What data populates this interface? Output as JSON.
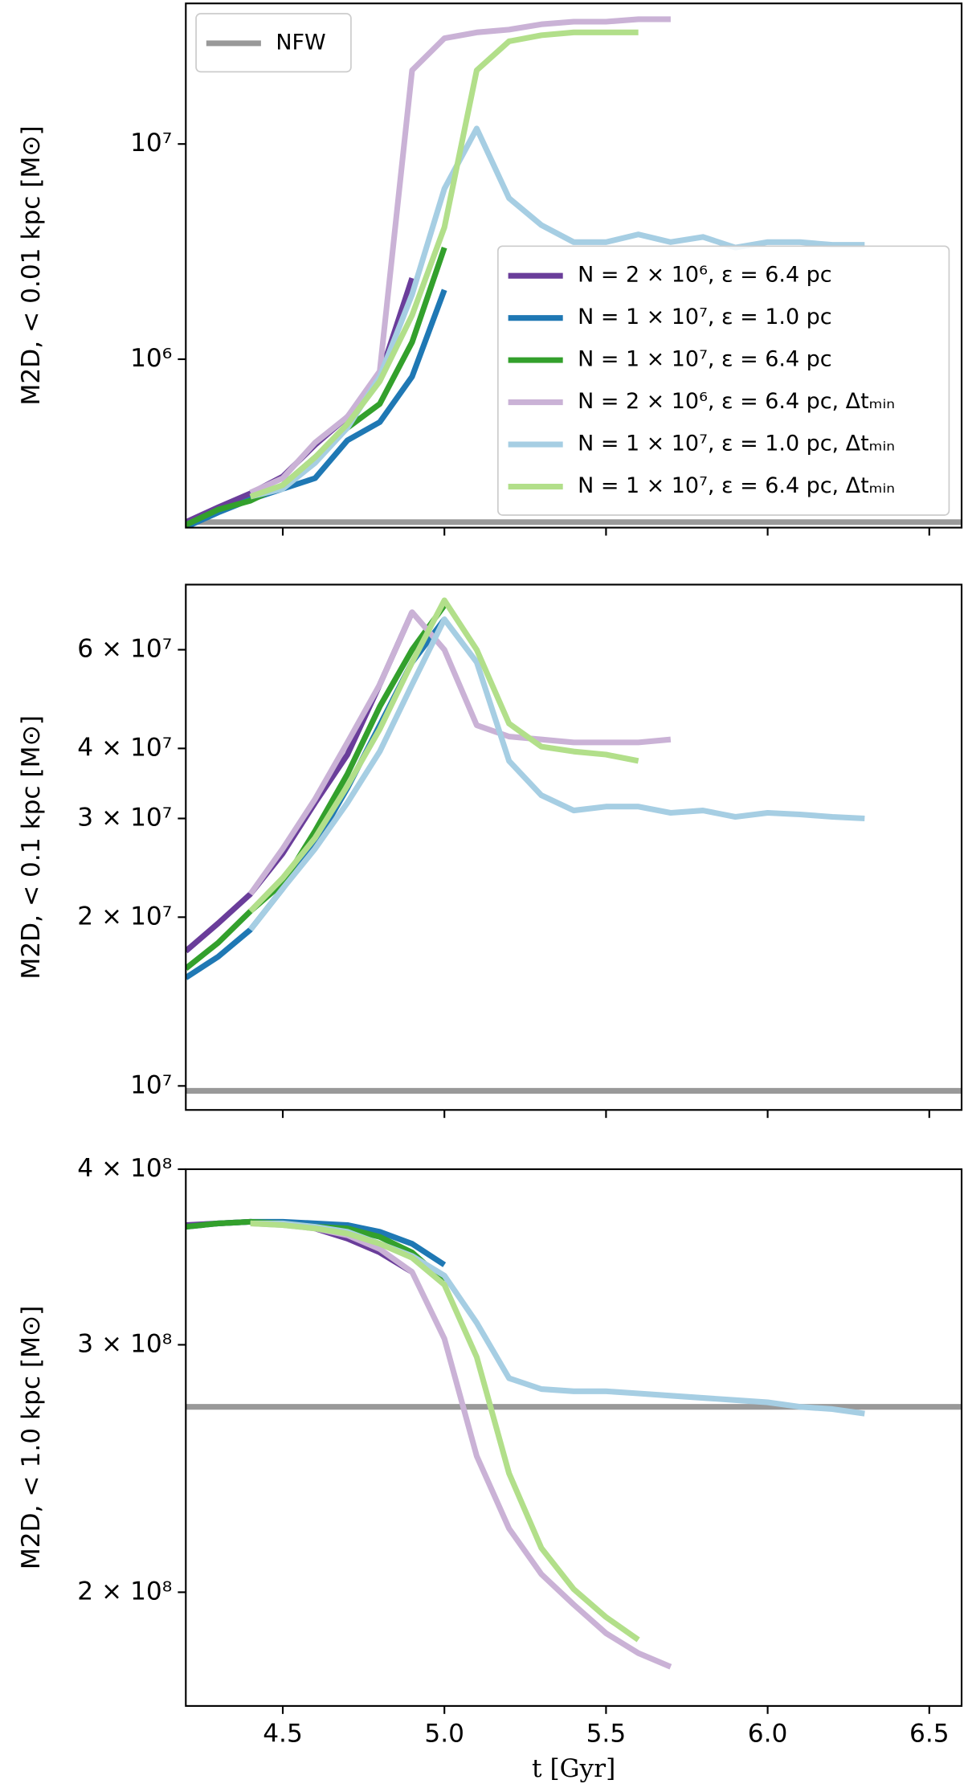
{
  "chart_data": [
    {
      "type": "line",
      "log_y": true,
      "xlim": [
        4.2,
        6.6
      ],
      "xticks": [
        4.5,
        5,
        5.5,
        6,
        6.5
      ],
      "ylim": [
        165000,
        45000000
      ],
      "yticks": [
        {
          "value": 1000000,
          "label": "10⁶"
        },
        {
          "value": 10000000,
          "label": "10⁷"
        }
      ],
      "ylabel": "M2D, < 0.01 kpc [M⊙]",
      "legend": "lower right",
      "reference": {
        "name": "NFW",
        "color": "#999999",
        "value": 175000,
        "legend": "upper left"
      },
      "x": [
        4.2,
        4.3,
        4.4,
        4.5,
        4.6,
        4.7,
        4.8,
        4.9,
        5.0,
        5.1,
        5.2,
        5.3,
        5.4,
        5.5,
        5.6,
        5.7,
        5.8,
        5.9,
        6.0,
        6.1,
        6.2,
        6.3
      ],
      "series": [
        {
          "name": "N = 2 × 10⁶, ε = 6.4 pc",
          "color": "#6a3d9a",
          "values": [
            175000,
            205000,
            238000,
            285000,
            400000,
            540000,
            830000,
            2380000,
            null,
            null,
            null,
            null,
            null,
            null,
            null,
            null,
            null,
            null,
            null,
            null,
            null,
            null
          ]
        },
        {
          "name": "N = 1 × 10⁷, ε = 1.0 pc",
          "color": "#1f78b4",
          "values": [
            166000,
            194000,
            223000,
            250000,
            280000,
            420000,
            510000,
            830000,
            2100000,
            null,
            null,
            null,
            null,
            null,
            null,
            null,
            null,
            null,
            null,
            null,
            null,
            null
          ]
        },
        {
          "name": "N = 1 × 10⁷, ε = 6.4 pc",
          "color": "#33a02c",
          "values": [
            170000,
            200000,
            220000,
            260000,
            350000,
            480000,
            620000,
            1200000,
            3300000,
            null,
            null,
            null,
            null,
            null,
            null,
            null,
            null,
            null,
            null,
            null,
            null,
            null
          ]
        },
        {
          "name": "N = 2 × 10⁶, ε = 6.4 pc, Δtₘᵢₙ",
          "color": "#cab2d6",
          "values": [
            null,
            null,
            240000,
            280000,
            410000,
            540000,
            880000,
            22000000,
            31000000,
            33000000,
            34000000,
            36000000,
            37000000,
            37000000,
            38000000,
            38000000,
            null,
            null,
            null,
            null,
            null,
            null
          ]
        },
        {
          "name": "N = 1 × 10⁷, ε = 1.0 pc, Δtₘᵢₙ",
          "color": "#a6cee3",
          "values": [
            null,
            null,
            230000,
            250000,
            330000,
            480000,
            830000,
            2000000,
            6200000,
            11800000,
            5600000,
            4200000,
            3500000,
            3500000,
            3800000,
            3500000,
            3700000,
            3300000,
            3500000,
            3500000,
            3400000,
            3400000
          ]
        },
        {
          "name": "N = 1 × 10⁷, ε = 6.4 pc, Δtₘᵢₙ",
          "color": "#b2df8a",
          "values": [
            null,
            null,
            230000,
            260000,
            350000,
            500000,
            790000,
            1600000,
            4100000,
            22000000,
            30000000,
            32000000,
            33000000,
            33000000,
            33000000,
            null,
            null,
            null,
            null,
            null,
            null,
            null
          ]
        }
      ]
    },
    {
      "type": "line",
      "log_y": true,
      "xlim": [
        4.2,
        6.6
      ],
      "xticks": [
        4.5,
        5,
        5.5,
        6,
        6.5
      ],
      "ylim": [
        9060000,
        78400000
      ],
      "yticks": [
        {
          "value": 10000000,
          "label": "10⁷"
        },
        {
          "value": 20000000,
          "label": "2 × 10⁷"
        },
        {
          "value": 30000000,
          "label": "3 × 10⁷"
        },
        {
          "value": 40000000,
          "label": "4 × 10⁷"
        },
        {
          "value": 60000000,
          "label": "6 × 10⁷"
        }
      ],
      "ylabel": "M2D, < 0.1 kpc [M⊙]",
      "reference": {
        "color": "#999999",
        "value": 9800000
      },
      "x": [
        4.2,
        4.3,
        4.4,
        4.5,
        4.6,
        4.7,
        4.8,
        4.9,
        5.0,
        5.1,
        5.2,
        5.3,
        5.4,
        5.5,
        5.6,
        5.7,
        5.8,
        5.9,
        6.0,
        6.1,
        6.2,
        6.3
      ],
      "series": [
        {
          "color": "#6a3d9a",
          "values": [
            17400000,
            19500000,
            22000000,
            26000000,
            32000000,
            39000000,
            52000000,
            70000000,
            null,
            null,
            null,
            null,
            null,
            null,
            null,
            null,
            null,
            null,
            null,
            null,
            null,
            null
          ]
        },
        {
          "color": "#1f78b4",
          "values": [
            15600000,
            17000000,
            19000000,
            22500000,
            27000000,
            34000000,
            44000000,
            57000000,
            68000000,
            null,
            null,
            null,
            null,
            null,
            null,
            null,
            null,
            null,
            null,
            null,
            null,
            null
          ]
        },
        {
          "color": "#33a02c",
          "values": [
            16200000,
            18000000,
            20500000,
            23000000,
            28500000,
            36000000,
            47500000,
            60000000,
            72000000,
            null,
            null,
            null,
            null,
            null,
            null,
            null,
            null,
            null,
            null,
            null,
            null,
            null
          ]
        },
        {
          "color": "#cab2d6",
          "values": [
            null,
            null,
            22000000,
            26500000,
            32500000,
            41000000,
            52000000,
            70000000,
            60000000,
            44000000,
            42000000,
            41500000,
            41000000,
            41000000,
            41000000,
            41500000,
            null,
            null,
            null,
            null,
            null,
            null
          ]
        },
        {
          "color": "#a6cee3",
          "values": [
            null,
            null,
            19000000,
            22500000,
            26500000,
            32000000,
            39500000,
            52000000,
            68000000,
            57000000,
            38000000,
            33000000,
            31000000,
            31500000,
            31500000,
            30700000,
            31000000,
            30200000,
            30700000,
            30500000,
            30200000,
            30000000
          ]
        },
        {
          "color": "#b2df8a",
          "values": [
            null,
            null,
            20500000,
            23500000,
            27700000,
            34300000,
            43300000,
            57000000,
            73500000,
            60000000,
            44300000,
            40300000,
            39500000,
            39000000,
            38000000,
            null,
            null,
            null,
            null,
            null,
            null,
            null
          ]
        }
      ]
    },
    {
      "type": "line",
      "log_y": true,
      "xlim": [
        4.2,
        6.6
      ],
      "xticks": [
        4.5,
        {
          "value": 5,
          "label": "5.0"
        },
        5.5,
        {
          "value": 6,
          "label": "6.0"
        },
        6.5
      ],
      "ylim": [
        166000000,
        400000000
      ],
      "yticks": [
        {
          "value": 200000000,
          "label": "2 × 10⁸"
        },
        {
          "value": 300000000,
          "label": "3 × 10⁸"
        },
        {
          "value": 400000000,
          "label": "4 × 10⁸"
        }
      ],
      "ylabel": "M2D, < 1.0 kpc [M⊙]",
      "xlabel": "t [Gyr]",
      "reference": {
        "color": "#999999",
        "value": 271000000
      },
      "x": [
        4.2,
        4.3,
        4.4,
        4.5,
        4.6,
        4.7,
        4.8,
        4.9,
        5.0,
        5.1,
        5.2,
        5.3,
        5.4,
        5.5,
        5.6,
        5.7,
        5.8,
        5.9,
        6.0,
        6.1,
        6.2,
        6.3
      ],
      "series": [
        {
          "color": "#6a3d9a",
          "values": [
            365000000,
            366000000,
            367000000,
            366000000,
            363000000,
            357000000,
            349000000,
            338000000,
            null,
            null,
            null,
            null,
            null,
            null,
            null,
            null,
            null,
            null,
            null,
            null,
            null,
            null
          ]
        },
        {
          "color": "#1f78b4",
          "values": [
            364000000,
            366000000,
            367000000,
            367000000,
            366000000,
            365000000,
            361000000,
            354000000,
            342000000,
            null,
            null,
            null,
            null,
            null,
            null,
            null,
            null,
            null,
            null,
            null,
            null,
            null
          ]
        },
        {
          "color": "#33a02c",
          "values": [
            364000000,
            366000000,
            367000000,
            366000000,
            364000000,
            363000000,
            358000000,
            349000000,
            333000000,
            null,
            null,
            null,
            null,
            null,
            null,
            null,
            null,
            null,
            null,
            null,
            null,
            null
          ]
        },
        {
          "color": "#cab2d6",
          "values": [
            null,
            null,
            366000000,
            365000000,
            363000000,
            359000000,
            351000000,
            338000000,
            303000000,
            250000000,
            222000000,
            206000000,
            196000000,
            187000000,
            181000000,
            177000000,
            null,
            null,
            null,
            null,
            null,
            null
          ]
        },
        {
          "color": "#a6cee3",
          "values": [
            null,
            null,
            366000000,
            366000000,
            364000000,
            361000000,
            354000000,
            347000000,
            336000000,
            311000000,
            284000000,
            279000000,
            278000000,
            278000000,
            277000000,
            276000000,
            275000000,
            274000000,
            273000000,
            271000000,
            270000000,
            268000000
          ]
        },
        {
          "color": "#b2df8a",
          "values": [
            null,
            null,
            366000000,
            365000000,
            363000000,
            360000000,
            354000000,
            346000000,
            331000000,
            294000000,
            243000000,
            215000000,
            201000000,
            192000000,
            185000000,
            null,
            null,
            null,
            null,
            null,
            null,
            null
          ]
        }
      ]
    }
  ]
}
